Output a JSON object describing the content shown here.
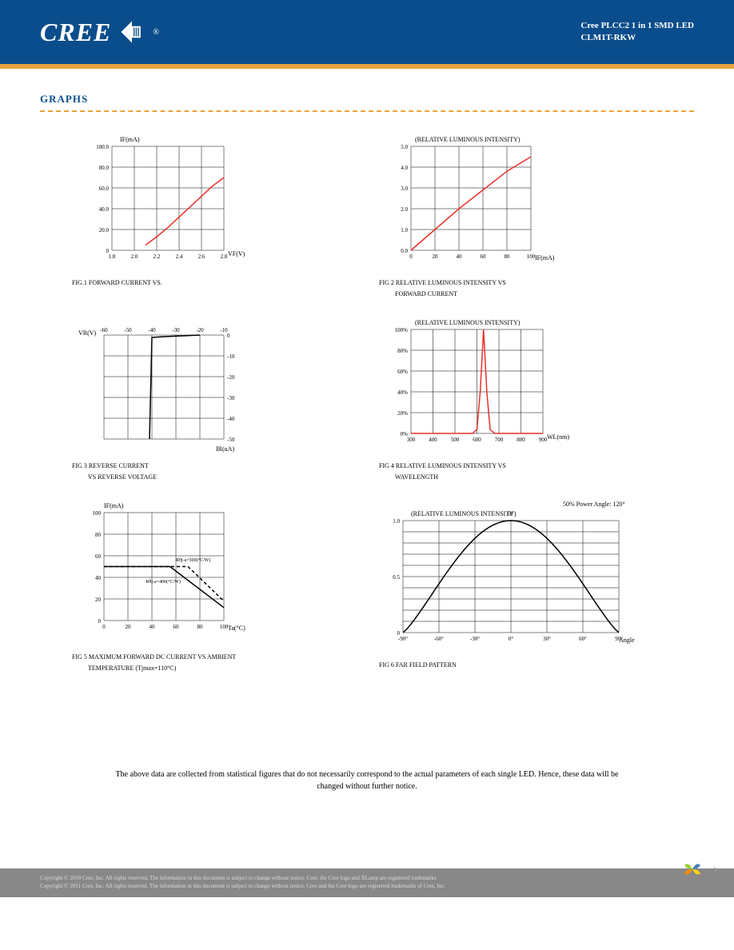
{
  "header": {
    "logo_text": "CREE",
    "product_line1": "Cree PLCC2 1 in 1 SMD LED",
    "product_line2": "CLM1T-RKW"
  },
  "section_title": "GRAPHS",
  "fig1": {
    "ylabel": "IF(mA)",
    "xlabel": "VF(V)",
    "caption": "FIG.1 FORWARD CURRENT VS.",
    "yticks": [
      "0",
      "20.0",
      "40.0",
      "60.0",
      "80.0",
      "100.0"
    ],
    "xticks": [
      "1.8",
      "2.0",
      "2.2",
      "2.4",
      "2.6",
      "2.8"
    ],
    "line_color": "#e8302a",
    "points": [
      [
        2.1,
        5
      ],
      [
        2.2,
        13
      ],
      [
        2.3,
        22
      ],
      [
        2.4,
        32
      ],
      [
        2.5,
        42
      ],
      [
        2.6,
        52
      ],
      [
        2.7,
        62
      ],
      [
        2.8,
        70
      ]
    ]
  },
  "fig2": {
    "ylabel": "(RELATIVE LUMINOUS INTENSITY)",
    "xlabel": "IF(mA)",
    "caption_l1": "FIG 2 RELATIVE LUMINOUS INTENSITY VS",
    "caption_l2": "FORWARD CURRENT",
    "yticks": [
      "0.0",
      "1.0",
      "2.0",
      "3.0",
      "4.0",
      "5.0"
    ],
    "xticks": [
      "0",
      "20",
      "40",
      "60",
      "80",
      "100"
    ],
    "line_color": "#e8302a",
    "points": [
      [
        0,
        0
      ],
      [
        20,
        1.0
      ],
      [
        40,
        2.0
      ],
      [
        60,
        2.9
      ],
      [
        80,
        3.8
      ],
      [
        100,
        4.5
      ]
    ]
  },
  "fig3": {
    "ylabel": "VR(V)",
    "xlabel": "IR(uA)",
    "caption_l1": "FIG 3 REVERSE CURRENT",
    "caption_l2": "VS REVERSE VOLTAGE",
    "xticks_top": [
      "-60",
      "-50",
      "-40",
      "-30",
      "-20",
      "-10"
    ],
    "yticks_right": [
      "0",
      "-10",
      "-20",
      "-30",
      "-40",
      "-50"
    ],
    "line_color": "#000000"
  },
  "fig4": {
    "ylabel": "(RELATIVE LUMINOUS INTENSITY)",
    "xlabel": "WL(nm)",
    "caption_l1": "FIG 4 RELATIVE LUMINOUS INTENSITY VS",
    "caption_l2": "WAVELENGTH",
    "yticks": [
      "0%",
      "20%",
      "40%",
      "60%",
      "80%",
      "100%"
    ],
    "xticks": [
      "300",
      "400",
      "500",
      "600",
      "700",
      "800",
      "900"
    ],
    "line_color": "#e8302a",
    "peak_wl": 630
  },
  "fig5": {
    "ylabel": "IF(mA)",
    "xlabel": "Ta(°C)",
    "caption_l1": "FIG 5 MAXIMUM FORWARD DC CURRENT VS AMBIENT",
    "caption_l2": "TEMPERATURE (Tjmax=110°C)",
    "yticks": [
      "0",
      "20",
      "40",
      "60",
      "80",
      "100"
    ],
    "xticks": [
      "0",
      "20",
      "40",
      "60",
      "80",
      "100"
    ],
    "anno1": "Rθj-a=500(°C/W)",
    "anno2": "Rθj-a=400(°C/W)"
  },
  "fig6": {
    "ylabel": "(RELATIVE LUMINOUS INTENSITY)",
    "xlabel": "Angle",
    "caption": "FIG 6 FAR FIELD PATTERN",
    "corner_label": "50% Power Angle: 120°",
    "top_label": "0°",
    "yticks": [
      "0",
      "0.5",
      "1.0"
    ],
    "xticks": [
      "-90°",
      "-60°",
      "-30°",
      "0°",
      "30°",
      "60°",
      "90°"
    ]
  },
  "disclaimer": "The above data are collected from statistical figures that do not necessarily correspond to the actual parameters of each single LED. Hence, these data will be changed without further notice.",
  "footer": {
    "line1": "Copyright © 2010 Cree, Inc. All rights reserved. The information in this document is subject to change without notice. Cree, the Cree logo and XLamp are registered trademarks",
    "line2": "Copyright © 2011 Cree, Inc. All rights reserved. The information in this document is subject to change without notice. Cree and the Cree logo are registered trademarks of Cree, Inc."
  },
  "colors": {
    "header_bg": "#0a4d8c",
    "orange": "#e8a33d",
    "red": "#e8302a"
  }
}
